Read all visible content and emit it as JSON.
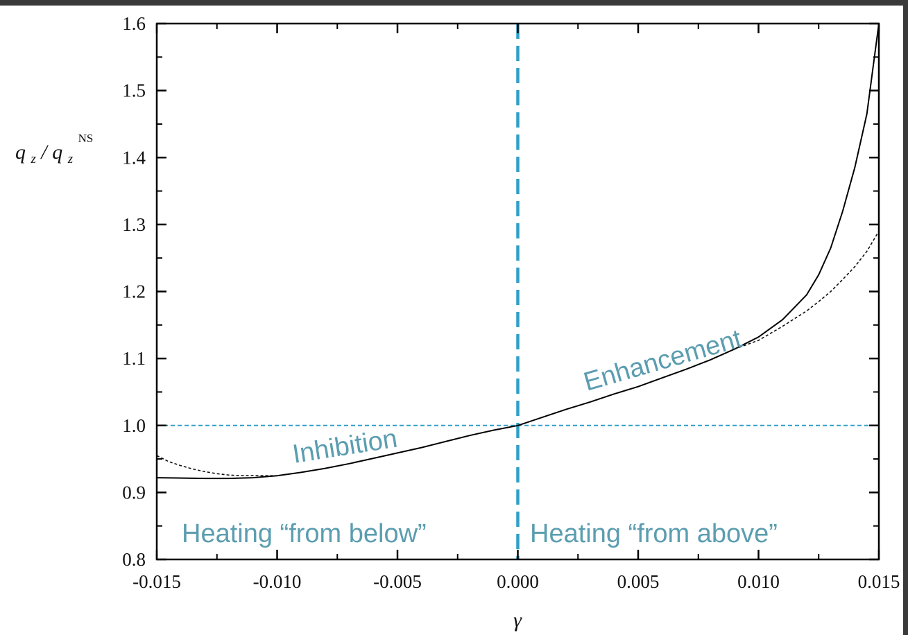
{
  "chart_data": {
    "type": "line",
    "xlabel": "γ",
    "ylabel": "q_z/q_z^NS",
    "ylabel_parts": {
      "q1": "q",
      "sub1": "z",
      "slash": "/",
      "q2": "q",
      "sub2": "z",
      "sup": "NS"
    },
    "xlim": [
      -0.015,
      0.015
    ],
    "ylim": [
      0.8,
      1.6
    ],
    "x_ticks": [
      -0.015,
      -0.01,
      -0.005,
      0.0,
      0.005,
      0.01,
      0.015
    ],
    "x_tick_labels": [
      "-0.015",
      "-0.010",
      "-0.005",
      "0.000",
      "0.005",
      "0.010",
      "0.015"
    ],
    "y_ticks": [
      0.8,
      0.9,
      1.0,
      1.1,
      1.2,
      1.3,
      1.4,
      1.5,
      1.6
    ],
    "y_tick_labels": [
      "0.8",
      "0.9",
      "1.0",
      "1.1",
      "1.2",
      "1.3",
      "1.4",
      "1.5",
      "1.6"
    ],
    "grid": false,
    "series": [
      {
        "style": "solid",
        "x": [
          -0.015,
          -0.013,
          -0.012,
          -0.011,
          -0.01,
          -0.009,
          -0.008,
          -0.007,
          -0.006,
          -0.005,
          -0.004,
          -0.003,
          -0.002,
          -0.001,
          0.0,
          0.001,
          0.002,
          0.003,
          0.004,
          0.005,
          0.006,
          0.007,
          0.008,
          0.009,
          0.01,
          0.011,
          0.012,
          0.0125,
          0.013,
          0.0135,
          0.014,
          0.0145,
          0.015
        ],
        "y": [
          0.922,
          0.921,
          0.921,
          0.922,
          0.925,
          0.93,
          0.936,
          0.943,
          0.951,
          0.959,
          0.967,
          0.976,
          0.985,
          0.993,
          1.0,
          1.012,
          1.024,
          1.035,
          1.047,
          1.058,
          1.071,
          1.084,
          1.098,
          1.114,
          1.132,
          1.158,
          1.195,
          1.225,
          1.265,
          1.32,
          1.385,
          1.465,
          1.6
        ]
      },
      {
        "style": "dotted",
        "x": [
          -0.015,
          -0.0145,
          -0.014,
          -0.0135,
          -0.013,
          -0.0125,
          -0.012,
          -0.0115,
          -0.011,
          -0.01,
          0.009,
          0.01,
          0.011,
          0.012,
          0.0125,
          0.013,
          0.0135,
          0.014,
          0.0145,
          0.015
        ],
        "y": [
          0.955,
          0.946,
          0.94,
          0.935,
          0.931,
          0.928,
          0.926,
          0.925,
          0.925,
          0.925,
          1.114,
          1.127,
          1.148,
          1.171,
          1.185,
          1.2,
          1.218,
          1.237,
          1.26,
          1.29
        ]
      }
    ],
    "reference_lines": {
      "horizontal_y": 1.0,
      "vertical_x": 0.0,
      "color": "#2f9fc8"
    },
    "annotations": {
      "color": "#5b9db0",
      "inhibition": "Inhibition",
      "enhancement": "Enhancement",
      "heating_below": "Heating “from below”",
      "heating_above": "Heating “from above”"
    }
  }
}
